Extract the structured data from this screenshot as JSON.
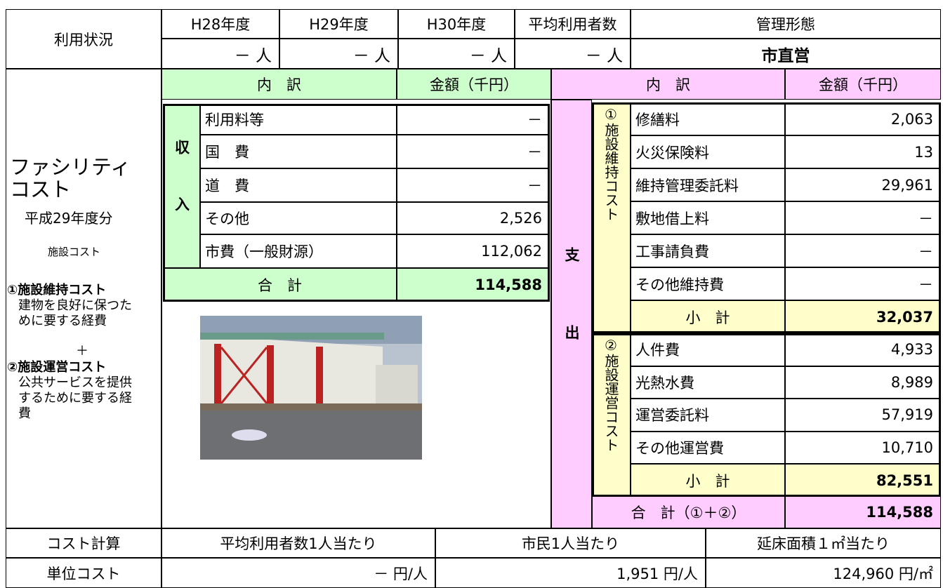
{
  "usage": {
    "label": "利用状況",
    "headers": [
      "H28年度",
      "H29年度",
      "H30年度",
      "平均利用者数",
      "管理形態"
    ],
    "values": [
      "－ 人",
      "－ 人",
      "－ 人",
      "－ 人",
      "市直営"
    ]
  },
  "facility_cost": {
    "title": "ファシリティコスト",
    "period": "平成29年度分",
    "subtitle": "施設コスト",
    "note1_title": "①施設維持コスト",
    "note1_body": "建物を良好に保つために要する経費",
    "plus": "＋",
    "note2_title": "②施設運営コスト",
    "note2_body": "公共サービスを提供するために要する経費"
  },
  "income": {
    "header_item": "内　訳",
    "header_amount": "金額（千円）",
    "label": "収入",
    "rows": [
      [
        "利用料等",
        "－"
      ],
      [
        "国　費",
        "－"
      ],
      [
        "道　費",
        "－"
      ],
      [
        "その他",
        "2,526"
      ],
      [
        "市費（一般財源）",
        "112,062"
      ]
    ],
    "total_label": "合　計",
    "total": "114,588"
  },
  "expense": {
    "header_item": "内　訳",
    "header_amount": "金額（千円）",
    "label": "支出",
    "section1": {
      "label": "①施設維持コスト",
      "rows": [
        [
          "修繕料",
          "2,063"
        ],
        [
          "火災保険料",
          "13"
        ],
        [
          "維持管理委託料",
          "29,961"
        ],
        [
          "敷地借上料",
          "－"
        ],
        [
          "工事請負費",
          "－"
        ],
        [
          "その他維持費",
          "－"
        ]
      ],
      "subtotal_label": "小　計",
      "subtotal": "32,037"
    },
    "section2": {
      "label": "②施設運営コスト",
      "rows": [
        [
          "人件費",
          "4,933"
        ],
        [
          "光熱水費",
          "8,989"
        ],
        [
          "運営委託料",
          "57,919"
        ],
        [
          "その他運営費",
          "10,710"
        ]
      ],
      "subtotal_label": "小　計",
      "subtotal": "82,551"
    },
    "total_label": "合　計（①＋②）",
    "total": "114,588"
  },
  "unit_cost": {
    "label": "コスト計算",
    "headers": [
      "平均利用者数1人当たり",
      "市民1人当たり",
      "延床面積１㎡当たり"
    ],
    "row_label": "単位コスト",
    "values": [
      "－ 円/人",
      "1,951 円/人",
      "124,960 円/㎡"
    ]
  }
}
